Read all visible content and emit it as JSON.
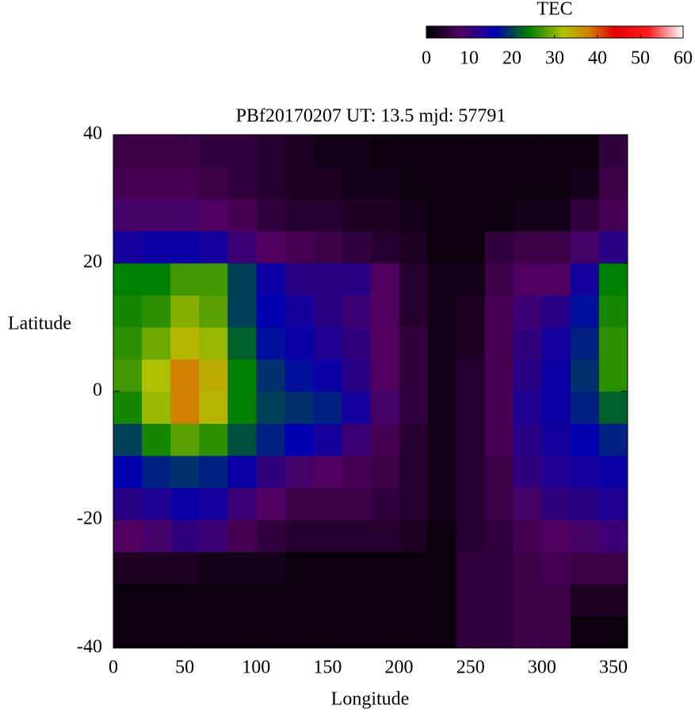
{
  "chart_data": {
    "type": "heatmap",
    "title": "PBf20170207  UT: 13.5  mjd: 57791",
    "x_label": "Longitude",
    "y_label": "Latitude",
    "colorbar_label": "TEC",
    "x": [
      10,
      30,
      50,
      70,
      90,
      110,
      130,
      150,
      170,
      190,
      210,
      230,
      250,
      270,
      290,
      310,
      330,
      350
    ],
    "y": [
      -37.5,
      -32.5,
      -27.5,
      -22.5,
      -17.5,
      -12.5,
      -7.5,
      -2.5,
      2.5,
      7.5,
      12.5,
      17.5,
      22.5,
      27.5,
      32.5,
      37.5
    ],
    "z": [
      [
        1,
        1,
        1,
        1,
        1,
        1,
        1,
        1,
        1,
        1,
        1,
        1,
        5,
        5,
        6,
        6,
        1,
        1
      ],
      [
        1,
        1,
        1,
        1,
        1,
        1,
        1,
        1,
        1,
        1,
        1,
        1,
        5,
        5,
        6,
        6,
        3,
        3
      ],
      [
        3,
        3,
        3,
        2,
        2,
        2,
        1,
        1,
        1,
        1,
        1,
        1,
        5,
        5,
        6,
        7,
        6,
        6
      ],
      [
        8,
        9,
        11,
        10,
        7,
        5,
        4,
        4,
        4,
        4,
        3,
        1,
        4,
        5,
        7,
        8,
        9,
        10
      ],
      [
        12,
        13,
        15,
        14,
        10,
        8,
        6,
        6,
        6,
        5,
        4,
        2,
        4,
        6,
        9,
        11,
        12,
        13
      ],
      [
        16,
        18,
        19,
        18,
        15,
        11,
        9,
        8,
        7,
        6,
        4,
        2,
        4,
        6,
        11,
        13,
        14,
        15
      ],
      [
        20,
        25,
        28,
        26,
        21,
        18,
        16,
        14,
        10,
        7,
        4,
        2,
        4,
        7,
        12,
        14,
        16,
        18
      ],
      [
        25,
        31,
        38,
        33,
        24,
        20,
        19,
        18,
        14,
        9,
        5,
        2,
        4,
        7,
        13,
        15,
        18,
        22
      ],
      [
        27,
        32,
        38,
        34,
        24,
        19,
        17,
        15,
        12,
        8,
        5,
        2,
        4,
        7,
        12,
        15,
        19,
        26
      ],
      [
        26,
        29,
        33,
        31,
        22,
        17,
        15,
        13,
        11,
        8,
        5,
        2,
        3,
        7,
        11,
        14,
        18,
        26
      ],
      [
        25,
        26,
        30,
        28,
        20,
        16,
        14,
        12,
        10,
        8,
        4,
        2,
        3,
        7,
        10,
        12,
        17,
        25
      ],
      [
        24,
        24,
        27,
        27,
        20,
        15,
        12,
        12,
        12,
        8,
        4,
        2,
        2,
        6,
        8,
        8,
        14,
        24
      ],
      [
        14,
        15,
        15,
        14,
        10,
        8,
        7,
        6,
        5,
        4,
        3,
        1,
        1,
        5,
        6,
        6,
        9,
        12
      ],
      [
        9,
        9,
        9,
        8,
        7,
        5,
        4,
        4,
        3,
        3,
        2,
        1,
        1,
        1,
        2,
        2,
        5,
        7
      ],
      [
        7,
        7,
        7,
        6,
        5,
        4,
        3,
        3,
        2,
        2,
        1,
        1,
        1,
        1,
        1,
        1,
        2,
        6
      ],
      [
        6,
        6,
        6,
        5,
        5,
        4,
        3,
        2,
        2,
        1,
        1,
        1,
        1,
        1,
        1,
        1,
        1,
        5
      ]
    ],
    "xlim": [
      0,
      360
    ],
    "ylim": [
      -40,
      40
    ],
    "xticks": [
      0,
      50,
      100,
      150,
      200,
      250,
      300,
      350
    ],
    "yticks": [
      -40,
      -20,
      0,
      20,
      40
    ],
    "clim": [
      0,
      60
    ],
    "cticks": [
      0,
      10,
      20,
      30,
      40,
      50,
      60
    ],
    "colormap": [
      [
        0,
        "#000000"
      ],
      [
        8,
        "#500060"
      ],
      [
        16,
        "#0000b0"
      ],
      [
        24,
        "#008000"
      ],
      [
        32,
        "#b0c000"
      ],
      [
        38,
        "#d08000"
      ],
      [
        44,
        "#e00000"
      ],
      [
        52,
        "#ff2020"
      ],
      [
        60,
        "#ffffff"
      ]
    ]
  }
}
